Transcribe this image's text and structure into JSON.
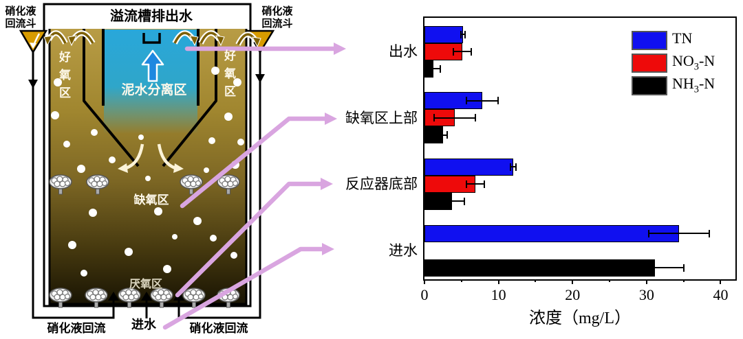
{
  "diagram": {
    "labels": {
      "hopper_left": "硝化液\n回流斗",
      "hopper_right": "硝化液\n回流斗",
      "overflow_outlet": "溢流槽排出水",
      "aerobic_left": "好氧区",
      "aerobic_right": "好氧区",
      "mud_water_separation": "泥水分离区",
      "anoxic_zone": "缺氧区",
      "anaerobic_zone": "厌氧区",
      "influent_inlet": "进水",
      "recycle_left": "硝化液回流",
      "recycle_right": "硝化液回流"
    },
    "colors": {
      "arrow_pink": "#d9a5e0",
      "tank_top": "#b89c45",
      "tank_bottom": "#191403",
      "clarifier_blue": "#29a7da",
      "funnel_gold": "#d79b00"
    }
  },
  "chart_data": {
    "type": "bar",
    "orientation": "horizontal",
    "title": "",
    "xlabel": "浓度（mg/L）",
    "categories": [
      "出水",
      "缺氧区上部",
      "反应器底部",
      "进水"
    ],
    "series": [
      {
        "name": "TN",
        "color": "#1010f0",
        "values": [
          5.2,
          7.8,
          12.0,
          34.4
        ],
        "errors": [
          0.3,
          2.1,
          0.4,
          4.1
        ]
      },
      {
        "name": "NO3-N",
        "color": "#ee0a0a",
        "values": [
          5.1,
          4.1,
          6.9,
          0
        ],
        "errors": [
          1.2,
          2.8,
          1.2,
          0
        ]
      },
      {
        "name": "NH3-N",
        "color": "#000000",
        "values": [
          1.2,
          2.5,
          3.7,
          31.1
        ],
        "errors": [
          0.9,
          0.6,
          1.7,
          3.9
        ]
      }
    ],
    "xticks": [
      0,
      10,
      20,
      30,
      40
    ],
    "xlim": [
      0,
      42
    ],
    "grid": false,
    "legend_position": "top-right",
    "legend": [
      {
        "pre": "TN",
        "sub": "",
        "post": ""
      },
      {
        "pre": "NO",
        "sub": "3",
        "post": "-N"
      },
      {
        "pre": "NH",
        "sub": "3",
        "post": "-N"
      }
    ]
  }
}
